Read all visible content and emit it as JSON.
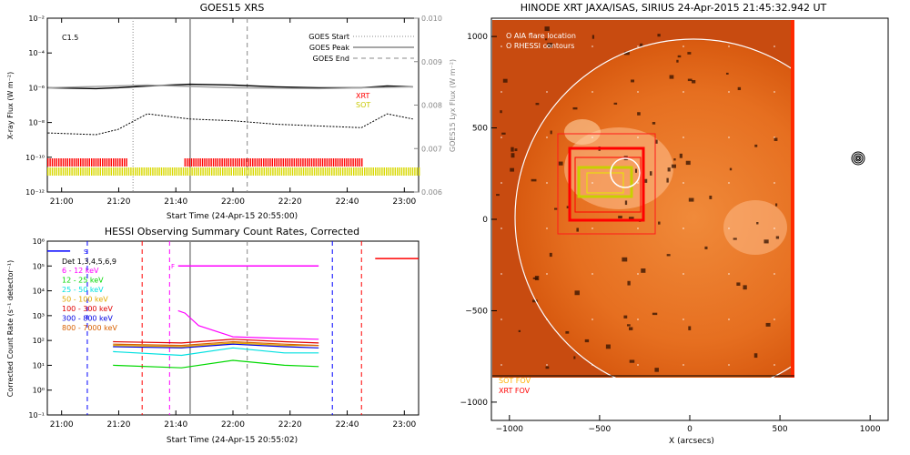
{
  "chart_data": [
    {
      "id": "goes",
      "type": "line",
      "title": "GOES15 XRS",
      "xlabel": "Start Time (24-Apr-15 20:55:00)",
      "ylabel": "X-ray Flux (W m⁻²)",
      "ylabel_right": "GOES15 Lyx Flux (W m⁻²)",
      "x_ticks": [
        "21:00",
        "21:20",
        "21:40",
        "22:00",
        "22:20",
        "22:40",
        "23:00"
      ],
      "y_ticks": [
        "10⁻²",
        "10⁻⁴",
        "10⁻⁶",
        "10⁻⁸",
        "10⁻¹⁰",
        "10⁻¹²"
      ],
      "y_right_ticks": [
        "0.010",
        "0.009",
        "0.008",
        "0.007",
        "0.006"
      ],
      "class_label": "C1.5",
      "legend": [
        {
          "label": "GOES Start",
          "style": "dotted"
        },
        {
          "label": "GOES Peak",
          "style": "solid"
        },
        {
          "label": "GOES End",
          "style": "dashed"
        }
      ],
      "markers": {
        "start": "21:25",
        "peak": "21:45",
        "end": "22:05"
      },
      "series": [
        {
          "name": "XRS long",
          "color": "#000000",
          "x": [
            20.92,
            21.2,
            21.33,
            21.5,
            21.75,
            22.0,
            22.25,
            22.5,
            22.75,
            22.9,
            23.05
          ],
          "log_flux": [
            -6.0,
            -6.05,
            -6.0,
            -5.9,
            -5.8,
            -5.85,
            -5.95,
            -6.0,
            -6.0,
            -5.9,
            -5.95
          ]
        },
        {
          "name": "XRS short",
          "color": "#000000",
          "x": [
            20.92,
            21.2,
            21.33,
            21.5,
            21.75,
            22.0,
            22.25,
            22.5,
            22.75,
            22.9,
            23.05
          ],
          "log_flux": [
            -8.6,
            -8.7,
            -8.4,
            -7.5,
            -7.8,
            -7.9,
            -8.1,
            -8.2,
            -8.3,
            -7.5,
            -7.8
          ]
        },
        {
          "name": "Lyx flux",
          "color": "#a0a0a0",
          "x": [
            20.92,
            21.5,
            22.0,
            22.5,
            23.05
          ],
          "log_flux": [
            -6.0,
            -5.85,
            -6.0,
            -6.05,
            -5.95
          ]
        }
      ],
      "bars": [
        {
          "label": "XRT",
          "color": "#ff0000",
          "intervals": [
            [
              "20:55",
              "21:23"
            ],
            [
              "21:43",
              "22:45"
            ]
          ]
        },
        {
          "label": "SOT",
          "color": "#d8d800",
          "intervals": [
            [
              "20:55",
              "23:05"
            ]
          ]
        }
      ],
      "xlim": [
        "20:55",
        "23:05"
      ],
      "ylim": [
        -12,
        -2
      ],
      "y_right_lim": [
        0.006,
        0.01
      ]
    },
    {
      "id": "hessi",
      "type": "line",
      "title": "HESSI Observing Summary Count Rates, Corrected",
      "xlabel": "Start Time (24-Apr-15 20:55:02)",
      "ylabel": "Corrected Count Rate (s⁻¹ detector⁻¹)",
      "x_ticks": [
        "21:00",
        "21:20",
        "21:40",
        "22:00",
        "22:20",
        "22:40",
        "23:00"
      ],
      "y_ticks": [
        "10⁶",
        "10⁵",
        "10⁴",
        "10³",
        "10²",
        "10¹",
        "10⁰",
        "10⁻¹"
      ],
      "detectors": "Det 1,3,4,5,6,9",
      "flag_labels": [
        "S",
        "F"
      ],
      "series": [
        {
          "name": "6 - 12 keV",
          "color": "#ff00ff",
          "x": [
            21.68,
            21.72,
            21.8,
            22.0,
            22.2,
            22.5
          ],
          "log_rate": [
            3.2,
            3.1,
            2.6,
            2.15,
            2.1,
            2.05
          ]
        },
        {
          "name": "12 - 25 keV",
          "color": "#00d800",
          "x": [
            21.3,
            21.7,
            22.0,
            22.3,
            22.5
          ],
          "log_rate": [
            1.0,
            0.9,
            1.2,
            1.0,
            0.95
          ]
        },
        {
          "name": "25 - 50 keV",
          "color": "#00e0e0",
          "x": [
            21.3,
            21.7,
            22.0,
            22.3,
            22.5
          ],
          "log_rate": [
            1.55,
            1.4,
            1.7,
            1.5,
            1.5
          ]
        },
        {
          "name": "50 - 100 keV",
          "color": "#e0a800",
          "x": [
            21.3,
            21.7,
            22.0,
            22.3,
            22.5
          ],
          "log_rate": [
            1.8,
            1.75,
            1.9,
            1.8,
            1.8
          ]
        },
        {
          "name": "100 - 300 keV",
          "color": "#e00000",
          "x": [
            21.3,
            21.7,
            22.0,
            22.3,
            22.5
          ],
          "log_rate": [
            1.95,
            1.9,
            2.05,
            1.95,
            1.9
          ]
        },
        {
          "name": "300 - 800 keV",
          "color": "#0000e0",
          "x": [
            21.3,
            21.7,
            22.0,
            22.3,
            22.5
          ],
          "log_rate": [
            1.75,
            1.7,
            1.85,
            1.75,
            1.7
          ]
        },
        {
          "name": "800 - 7000 keV",
          "color": "#d86000",
          "x": [
            21.3,
            21.7,
            22.0,
            22.3,
            22.5
          ],
          "log_rate": [
            1.85,
            1.8,
            1.95,
            1.85,
            1.8
          ]
        }
      ],
      "xlim": [
        "20:55",
        "23:05"
      ],
      "ylim": [
        -1,
        6
      ]
    },
    {
      "id": "xrt",
      "type": "image",
      "title": "HINODE XRT JAXA/ISAS, SIRIUS 24-Apr-2015 21:45:32.942 UT",
      "xlabel": "X (arcsecs)",
      "x_ticks": [
        "−1000",
        "−500",
        "0",
        "500",
        "1000"
      ],
      "y_ticks": [
        "1000",
        "500",
        "0",
        "−500",
        "−1000"
      ],
      "xlim": [
        -1100,
        1100
      ],
      "ylim": [
        -1100,
        1100
      ],
      "legend": [
        "O AIA flare location",
        "O RHESSI contours"
      ],
      "legend_colors": [
        "#ffffff",
        "#ff7070"
      ],
      "bottom_labels": [
        "SOT FOV",
        "XRT FOV"
      ],
      "bottom_colors": [
        "#ffb000",
        "#ff0000"
      ]
    }
  ]
}
